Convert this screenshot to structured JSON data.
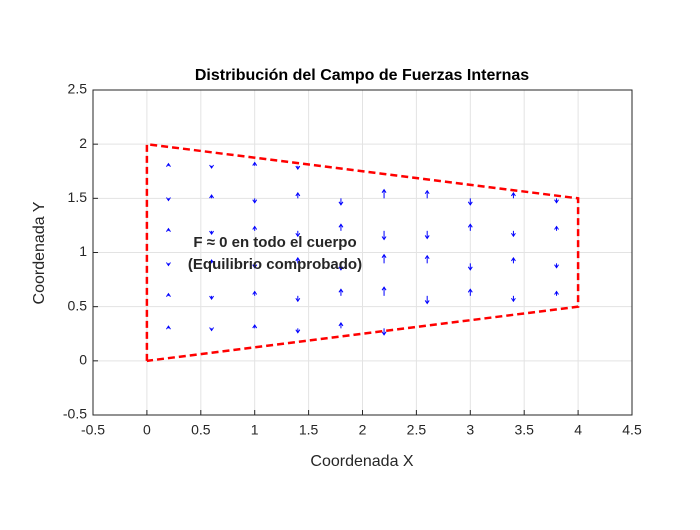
{
  "chart_data": {
    "type": "quiver",
    "title": "Distribución del Campo de Fuerzas Internas",
    "xlabel": "Coordenada X",
    "ylabel": "Coordenada Y",
    "annotation": [
      "F ≈ 0 en todo el cuerpo",
      "(Equilibrio comprobado)"
    ],
    "annotation_color": "#ff00ff",
    "xlim": [
      -0.5,
      4.5
    ],
    "ylim": [
      -0.5,
      2.5
    ],
    "xticks": [
      -0.5,
      0,
      0.5,
      1,
      1.5,
      2,
      2.5,
      3,
      3.5,
      4,
      4.5
    ],
    "yticks": [
      -0.5,
      0,
      0.5,
      1,
      1.5,
      2,
      2.5
    ],
    "grid": true,
    "boundary": {
      "color": "#ff0000",
      "x": [
        0,
        0,
        4,
        4,
        0
      ],
      "y": [
        0,
        2,
        1.5,
        0.5,
        0
      ]
    },
    "field": {
      "color": "#0000ff",
      "x": [
        0.2,
        0.6,
        1.0,
        1.4,
        1.8,
        2.2,
        0.2,
        0.6,
        1.0,
        1.4,
        1.8,
        2.2,
        2.6,
        3.0,
        3.4,
        3.8,
        0.2,
        0.6,
        1.0,
        1.4,
        1.8,
        2.2,
        2.6,
        3.0,
        3.4,
        3.8,
        0.2,
        0.6,
        1.0,
        1.4,
        1.8,
        2.2,
        2.6,
        3.0,
        3.4,
        3.8,
        0.2,
        0.6,
        1.0,
        1.4,
        1.8,
        2.2,
        2.6,
        3.0,
        3.4,
        3.8,
        0.2,
        0.6,
        1.0,
        1.4
      ],
      "y": [
        0.3,
        0.3,
        0.3,
        0.3,
        0.3,
        0.3,
        0.6,
        0.6,
        0.6,
        0.6,
        0.6,
        0.6,
        0.6,
        0.6,
        0.6,
        0.6,
        0.9,
        0.9,
        0.9,
        0.9,
        0.9,
        0.9,
        0.9,
        0.9,
        0.9,
        0.9,
        1.2,
        1.2,
        1.2,
        1.2,
        1.2,
        1.2,
        1.2,
        1.2,
        1.2,
        1.2,
        1.5,
        1.5,
        1.5,
        1.5,
        1.5,
        1.5,
        1.5,
        1.5,
        1.5,
        1.5,
        1.8,
        1.8,
        1.8,
        1.8
      ],
      "u": [
        0,
        0,
        0,
        0,
        0,
        0,
        0,
        0,
        0,
        0,
        0,
        0,
        0,
        0,
        0,
        0,
        0,
        0,
        0,
        0,
        0,
        0,
        0,
        0,
        0,
        0,
        0,
        0,
        0,
        0,
        0,
        0,
        0,
        0,
        0,
        0,
        0,
        0,
        0,
        0,
        0,
        0,
        0,
        0,
        0,
        0,
        0,
        0,
        0,
        0
      ],
      "v": [
        0.02,
        -0.02,
        0.03,
        -0.04,
        0.05,
        -0.06,
        0.02,
        -0.03,
        0.04,
        -0.05,
        0.06,
        0.08,
        -0.07,
        0.06,
        -0.05,
        0.04,
        -0.02,
        0.03,
        -0.04,
        0.05,
        -0.06,
        0.08,
        0.07,
        -0.06,
        0.05,
        -0.04,
        0.02,
        -0.03,
        0.04,
        -0.05,
        0.06,
        -0.08,
        -0.07,
        0.06,
        -0.05,
        0.04,
        -0.02,
        0.03,
        -0.04,
        0.05,
        -0.06,
        0.08,
        0.07,
        -0.06,
        0.05,
        -0.04,
        0.02,
        -0.02,
        0.03,
        -0.03
      ]
    }
  }
}
